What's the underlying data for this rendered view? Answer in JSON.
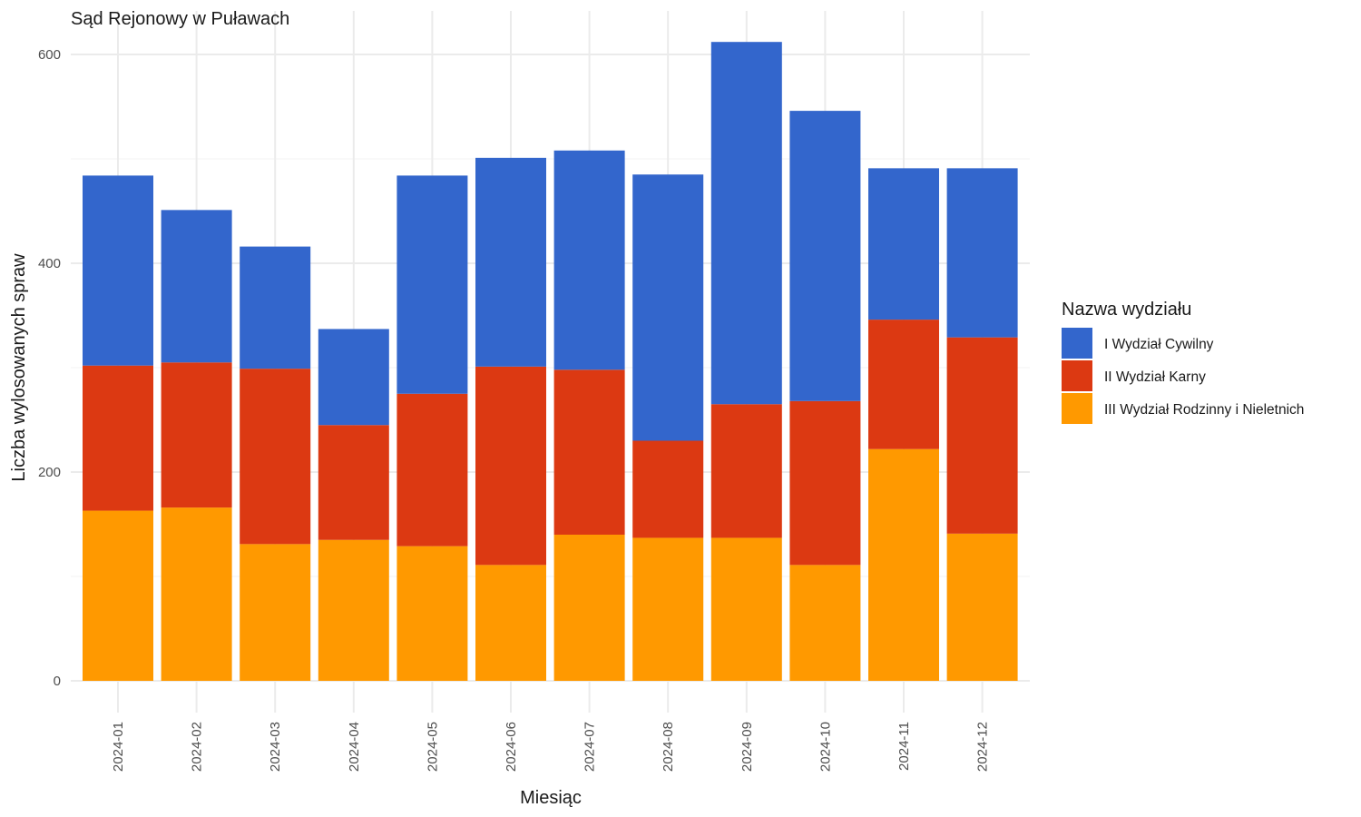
{
  "chart_data": {
    "type": "bar",
    "stacked": true,
    "title": "Sąd Rejonowy w Puławach",
    "xlabel": "Miesiąc",
    "ylabel": "Liczba wylosowanych spraw",
    "ylim": [
      0,
      625
    ],
    "yticks": [
      0,
      200,
      400,
      600
    ],
    "categories": [
      "2024-01",
      "2024-02",
      "2024-03",
      "2024-04",
      "2024-05",
      "2024-06",
      "2024-07",
      "2024-08",
      "2024-09",
      "2024-10",
      "2024-11",
      "2024-12"
    ],
    "series": [
      {
        "name": "III Wydział Rodzinny i Nieletnich",
        "color": "#FF9900",
        "values": [
          163,
          166,
          131,
          135,
          129,
          111,
          140,
          137,
          137,
          111,
          222,
          141
        ]
      },
      {
        "name": "II Wydział Karny",
        "color": "#DC3912",
        "values": [
          139,
          139,
          168,
          110,
          146,
          190,
          158,
          93,
          128,
          157,
          124,
          188
        ]
      },
      {
        "name": "I Wydział Cywilny",
        "color": "#3366CC",
        "values": [
          182,
          146,
          117,
          92,
          209,
          200,
          210,
          255,
          347,
          278,
          145,
          162
        ]
      }
    ],
    "grid": true,
    "legend": {
      "title": "Nazwa wydziału",
      "position": "right",
      "items": [
        {
          "label": "I Wydział Cywilny",
          "color": "#3366CC"
        },
        {
          "label": "II Wydział Karny",
          "color": "#DC3912"
        },
        {
          "label": "III Wydział Rodzinny i Nieletnich",
          "color": "#FF9900"
        }
      ]
    }
  }
}
